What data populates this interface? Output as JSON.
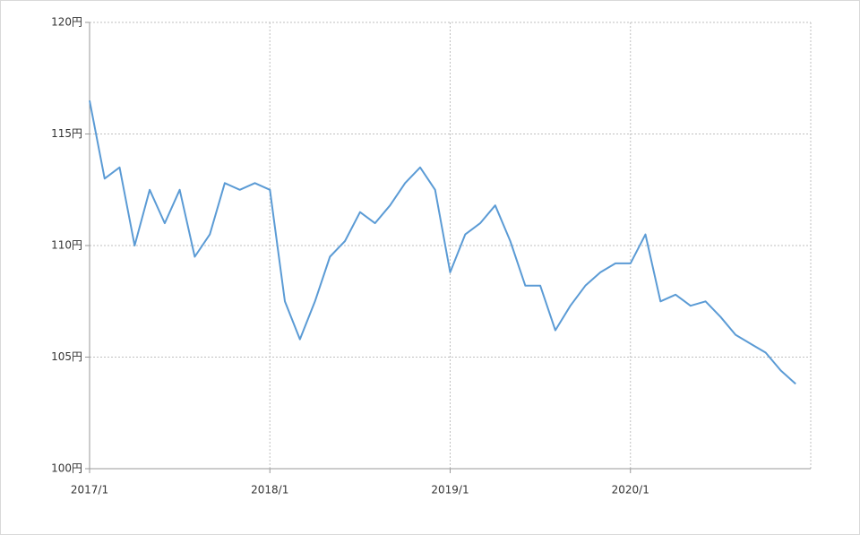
{
  "chart_data": {
    "type": "line",
    "x": [
      "2017/1",
      "2017/2",
      "2017/3",
      "2017/4",
      "2017/5",
      "2017/6",
      "2017/7",
      "2017/8",
      "2017/9",
      "2017/10",
      "2017/11",
      "2017/12",
      "2018/1",
      "2018/2",
      "2018/3",
      "2018/4",
      "2018/5",
      "2018/6",
      "2018/7",
      "2018/8",
      "2018/9",
      "2018/10",
      "2018/11",
      "2018/12",
      "2019/1",
      "2019/2",
      "2019/3",
      "2019/4",
      "2019/5",
      "2019/6",
      "2019/7",
      "2019/8",
      "2019/9",
      "2019/10",
      "2019/11",
      "2019/12",
      "2020/1",
      "2020/2",
      "2020/3",
      "2020/4",
      "2020/5",
      "2020/6",
      "2020/7",
      "2020/8",
      "2020/9",
      "2020/10",
      "2020/11",
      "2020/12"
    ],
    "series": [
      {
        "color": "#5b9bd5",
        "values": [
          116.5,
          113,
          113.5,
          110,
          112.5,
          111,
          112.5,
          109.5,
          110.5,
          112.8,
          112.5,
          112.8,
          112.5,
          107.5,
          105.8,
          107.5,
          109.5,
          110.2,
          111.5,
          111,
          111.8,
          112.8,
          113.5,
          112.5,
          108.8,
          110.5,
          111,
          111.8,
          110.2,
          108.2,
          108.2,
          106.2,
          107.3,
          108.2,
          108.8,
          109.2,
          109.2,
          110.5,
          107.5,
          107.8,
          107.3,
          107.5,
          106.8,
          106,
          105.6,
          105.2,
          104.4,
          103.8
        ]
      }
    ],
    "xlim": [
      "2017/1",
      "2021/1"
    ],
    "xticks": [
      "2017/1",
      "2018/1",
      "2019/1",
      "2020/1"
    ],
    "ylim": [
      100,
      120
    ],
    "yticks": [
      {
        "value": 100,
        "label": "100円"
      },
      {
        "value": 105,
        "label": "105円"
      },
      {
        "value": 110,
        "label": "110円"
      },
      {
        "value": 115,
        "label": "115円"
      },
      {
        "value": 120,
        "label": "120円"
      }
    ],
    "grid": true
  }
}
